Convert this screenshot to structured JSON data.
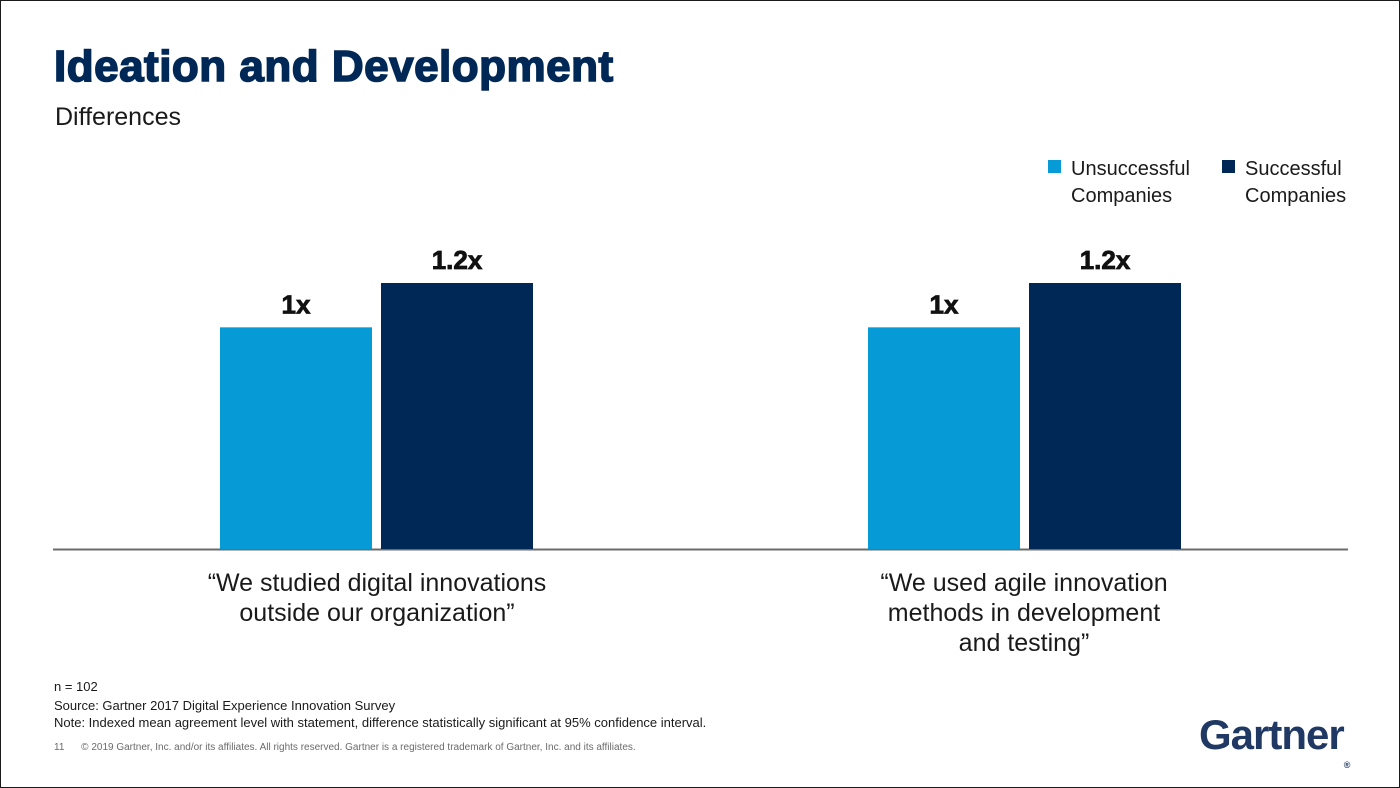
{
  "slide": {
    "title": "Ideation and Development",
    "subtitle": "Differences",
    "footnotes": {
      "n": "n = 102",
      "source": "Source: Gartner 2017 Digital Experience Innovation Survey",
      "note": "Note: Indexed mean agreement level with statement, difference statistically significant at 95% confidence interval."
    },
    "page_number": "11",
    "copyright": "© 2019 Gartner, Inc. and/or its affiliates. All rights reserved. Gartner is a registered trademark of Gartner, Inc. and its affiliates.",
    "logo_text": "Gartner",
    "logo_mark": "®"
  },
  "colors": {
    "unsuccessful": "#069bd7",
    "successful": "#002856",
    "axis": "#6b6b6b",
    "title": "#002856"
  },
  "chart_data": {
    "type": "bar",
    "categories": [
      [
        "“We studied digital innovations",
        "outside our organization”"
      ],
      [
        "“We used agile innovation",
        "methods in development",
        "and testing”"
      ]
    ],
    "series": [
      {
        "name": "Unsuccessful Companies",
        "legend_lines": [
          "Unsuccessful",
          "Companies"
        ],
        "values": [
          1,
          1
        ],
        "labels": [
          "1x",
          "1x"
        ]
      },
      {
        "name": "Successful Companies",
        "legend_lines": [
          "Successful",
          "Companies"
        ],
        "values": [
          1.2,
          1.2
        ],
        "labels": [
          "1.2x",
          "1.2x"
        ]
      }
    ],
    "ylim": [
      0,
      1.2
    ],
    "legend_position": "top-right",
    "grid": false
  }
}
